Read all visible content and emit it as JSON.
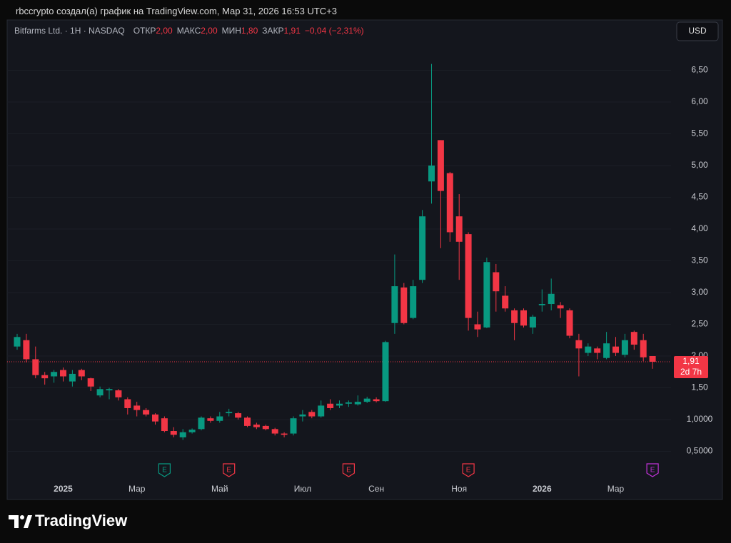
{
  "header": "rbccrypto создал(а) график на TradingView.com, Мар 31, 2026 16:53 UTC+3",
  "legend": {
    "symbol": "Bitfarms Ltd. · 1H · NASDAQ",
    "fields": [
      {
        "name": "ОТКР",
        "value": "2,00"
      },
      {
        "name": "МАКС",
        "value": "2,00"
      },
      {
        "name": "МИН",
        "value": "1,80"
      },
      {
        "name": "ЗАКР",
        "value": "1,91"
      }
    ],
    "change": "−0,04 (−2,31%)"
  },
  "brand": "TradingView",
  "chart_data": {
    "type": "candlestick",
    "currency": "USD",
    "categories": [
      null,
      null,
      null,
      null,
      null,
      "2025",
      null,
      null,
      null,
      null,
      null,
      null,
      null,
      "Мар",
      null,
      null,
      null,
      null,
      null,
      null,
      null,
      null,
      "Май",
      null,
      null,
      null,
      null,
      null,
      null,
      null,
      null,
      "Июл",
      null,
      null,
      null,
      null,
      null,
      null,
      null,
      "Сен",
      null,
      null,
      null,
      null,
      null,
      null,
      null,
      null,
      "Ноя",
      null,
      null,
      null,
      null,
      null,
      null,
      null,
      null,
      "2026",
      null,
      null,
      null,
      null,
      null,
      null,
      null,
      "Мар",
      null,
      null,
      null,
      null
    ],
    "open": [
      2.15,
      2.25,
      1.95,
      1.7,
      1.68,
      1.78,
      1.6,
      1.78,
      1.65,
      1.38,
      1.46,
      1.46,
      1.32,
      1.22,
      1.15,
      1.08,
      1.02,
      0.82,
      0.72,
      0.8,
      0.85,
      1.02,
      0.98,
      1.1,
      1.1,
      1.03,
      0.92,
      0.9,
      0.85,
      0.78,
      0.78,
      1.05,
      1.12,
      1.05,
      1.25,
      1.22,
      1.25,
      1.24,
      1.28,
      1.32,
      1.29,
      2.52,
      3.08,
      2.6,
      3.2,
      4.75,
      5.4,
      4.88,
      4.2,
      3.92,
      2.5,
      2.45,
      3.32,
      2.95,
      2.72,
      2.72,
      2.45,
      2.8,
      2.82,
      2.8,
      2.72,
      2.25,
      2.05,
      2.12,
      1.97,
      2.15,
      2.02,
      2.38,
      2.25,
      2.0
    ],
    "high": [
      2.35,
      2.35,
      2.15,
      1.75,
      1.78,
      1.82,
      1.78,
      1.8,
      1.66,
      1.52,
      1.5,
      1.48,
      1.35,
      1.28,
      1.18,
      1.1,
      1.05,
      0.88,
      0.85,
      0.86,
      1.05,
      1.05,
      1.12,
      1.17,
      1.12,
      1.05,
      0.95,
      0.92,
      0.87,
      0.8,
      1.05,
      1.15,
      1.15,
      1.3,
      1.32,
      1.3,
      1.3,
      1.38,
      1.36,
      1.35,
      2.24,
      3.6,
      3.15,
      3.2,
      4.3,
      6.6,
      5.4,
      4.9,
      4.55,
      3.95,
      2.7,
      3.55,
      3.45,
      3.1,
      2.75,
      2.75,
      2.65,
      3.05,
      3.22,
      2.85,
      2.75,
      2.35,
      2.2,
      2.15,
      2.38,
      2.3,
      2.35,
      2.4,
      2.35,
      2.0
    ],
    "low": [
      2.1,
      1.9,
      1.65,
      1.55,
      1.58,
      1.6,
      1.52,
      1.62,
      1.45,
      1.35,
      1.32,
      1.3,
      1.08,
      1.05,
      1.05,
      0.92,
      0.8,
      0.72,
      0.68,
      0.78,
      0.83,
      0.95,
      0.95,
      1.05,
      1.0,
      0.88,
      0.85,
      0.83,
      0.75,
      0.72,
      0.75,
      0.97,
      1.02,
      1.03,
      1.15,
      1.18,
      1.2,
      1.22,
      1.26,
      1.27,
      1.28,
      2.35,
      2.5,
      2.58,
      3.15,
      4.4,
      3.7,
      3.8,
      3.2,
      2.4,
      2.3,
      2.44,
      2.7,
      2.7,
      2.25,
      2.45,
      2.35,
      2.7,
      2.72,
      2.6,
      2.28,
      1.68,
      2.0,
      1.95,
      1.95,
      2.0,
      1.98,
      2.1,
      1.92,
      1.8
    ],
    "close": [
      2.3,
      1.95,
      1.7,
      1.65,
      1.75,
      1.68,
      1.72,
      1.68,
      1.52,
      1.48,
      1.48,
      1.35,
      1.18,
      1.15,
      1.08,
      0.97,
      0.82,
      0.76,
      0.8,
      0.84,
      1.03,
      0.98,
      1.05,
      1.12,
      1.03,
      0.9,
      0.88,
      0.85,
      0.78,
      0.76,
      1.02,
      1.08,
      1.05,
      1.22,
      1.18,
      1.25,
      1.27,
      1.28,
      1.33,
      1.29,
      2.22,
      3.1,
      2.52,
      3.1,
      4.2,
      5.0,
      4.6,
      3.95,
      3.8,
      2.6,
      2.42,
      3.48,
      3.02,
      2.75,
      2.52,
      2.48,
      2.62,
      2.82,
      2.98,
      2.75,
      2.32,
      2.12,
      2.15,
      2.05,
      2.2,
      2.05,
      2.25,
      2.18,
      1.98,
      1.91
    ],
    "up_color": "#089981",
    "down_color": "#f23645",
    "ylim": [
      0,
      7
    ],
    "yticks": [
      {
        "value": 0.5,
        "label": "0,5000"
      },
      {
        "value": 1,
        "label": "1,0000"
      },
      {
        "value": 1.5,
        "label": "1,50"
      },
      {
        "value": 2,
        "label": "2,00"
      },
      {
        "value": 2.5,
        "label": "2,50"
      },
      {
        "value": 3,
        "label": "3,00"
      },
      {
        "value": 3.5,
        "label": "3,50"
      },
      {
        "value": 4,
        "label": "4,00"
      },
      {
        "value": 4.5,
        "label": "4,50"
      },
      {
        "value": 5,
        "label": "5,00"
      },
      {
        "value": 5.5,
        "label": "5,50"
      },
      {
        "value": 6,
        "label": "6,00"
      },
      {
        "value": 6.5,
        "label": "6,50"
      }
    ],
    "grid": true,
    "last_price": {
      "value": 1.91,
      "label": "1,91",
      "countdown": "2d 7h"
    },
    "events": [
      {
        "label": "E",
        "color": "#089981"
      },
      {
        "label": "E",
        "color": "#f23645"
      },
      {
        "label": "E",
        "color": "#f23645"
      },
      {
        "label": "E",
        "color": "#f23645"
      },
      {
        "label": "E",
        "color": "#c132d8"
      }
    ]
  }
}
